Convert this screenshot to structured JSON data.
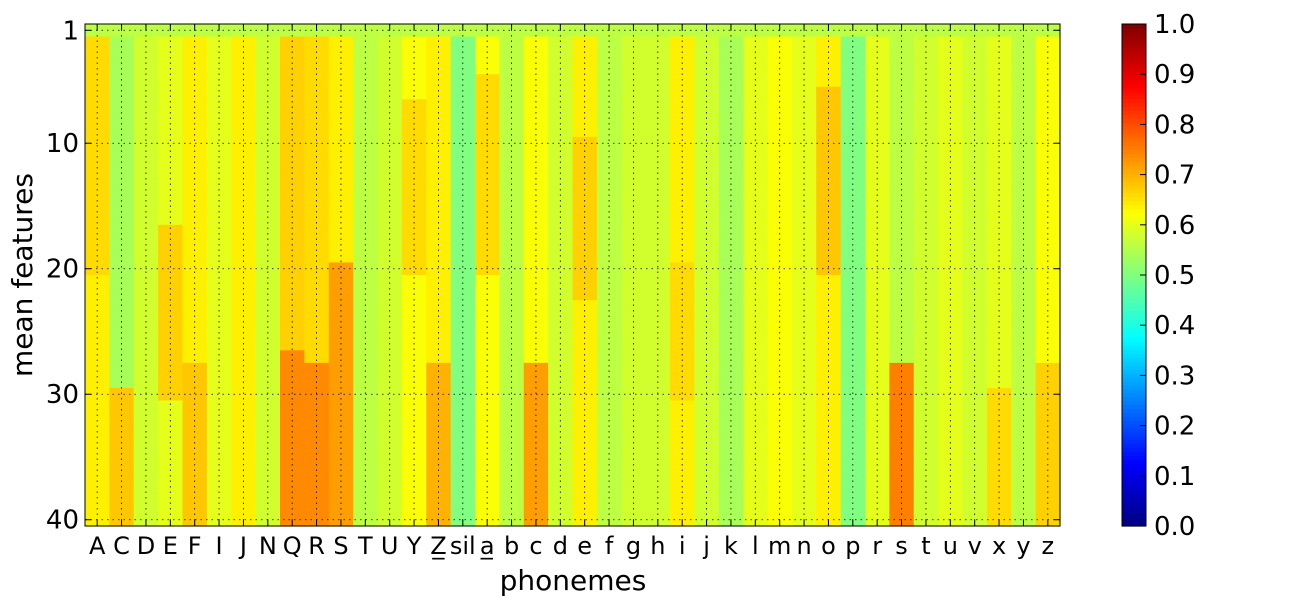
{
  "chart_data": {
    "type": "heatmap",
    "title": "",
    "xlabel": "phonemes",
    "ylabel": "mean features",
    "x_categories": [
      "A",
      "C",
      "D",
      "E",
      "F",
      "I",
      "J",
      "N",
      "Q",
      "R",
      "S",
      "T",
      "U",
      "Y",
      "Z_",
      "sil",
      "a_",
      "b",
      "c",
      "d",
      "e",
      "f",
      "g",
      "h",
      "i",
      "j",
      "k",
      "l",
      "m",
      "n",
      "o",
      "p",
      "r",
      "s",
      "t",
      "u",
      "v",
      "x",
      "y",
      "z"
    ],
    "x_tick_labels": [
      "A",
      "C",
      "D",
      "E",
      "F",
      "I",
      "J",
      "N",
      "Q",
      "R",
      "S",
      "T",
      "U",
      "Y",
      "Z̲",
      "sil",
      "a̲",
      "b",
      "c",
      "d",
      "e",
      "f",
      "g",
      "h",
      "i",
      "j",
      "k",
      "l",
      "m",
      "n",
      "o",
      "p",
      "r",
      "s",
      "t",
      "u",
      "v",
      "x",
      "y",
      "z"
    ],
    "y_range": [
      1,
      40
    ],
    "y_ticks": [
      1,
      10,
      20,
      30,
      40
    ],
    "grid": true,
    "colormap": "jet",
    "color_range": [
      0.0,
      1.0
    ],
    "colorbar_ticks": [
      "0.0",
      "0.1",
      "0.2",
      "0.3",
      "0.4",
      "0.5",
      "0.6",
      "0.7",
      "0.8",
      "0.9",
      "1.0"
    ],
    "column_base_values": [
      0.64,
      0.54,
      0.58,
      0.6,
      0.64,
      0.6,
      0.64,
      0.58,
      0.67,
      0.66,
      0.64,
      0.56,
      0.58,
      0.62,
      0.64,
      0.5,
      0.62,
      0.56,
      0.62,
      0.58,
      0.64,
      0.56,
      0.58,
      0.58,
      0.64,
      0.58,
      0.54,
      0.6,
      0.62,
      0.6,
      0.64,
      0.5,
      0.6,
      0.56,
      0.58,
      0.6,
      0.58,
      0.6,
      0.56,
      0.62
    ],
    "first_row_value": 0.56,
    "highlights": [
      {
        "column": "A",
        "rows": [
          2,
          20
        ],
        "value": 0.66
      },
      {
        "column": "C",
        "rows": [
          30,
          40
        ],
        "value": 0.68
      },
      {
        "column": "E",
        "rows": [
          17,
          30
        ],
        "value": 0.67
      },
      {
        "column": "F",
        "rows": [
          28,
          40
        ],
        "value": 0.68
      },
      {
        "column": "Q",
        "rows": [
          27,
          40
        ],
        "value": 0.74
      },
      {
        "column": "R",
        "rows": [
          28,
          40
        ],
        "value": 0.74
      },
      {
        "column": "S",
        "rows": [
          20,
          40
        ],
        "value": 0.72
      },
      {
        "column": "Y",
        "rows": [
          7,
          20
        ],
        "value": 0.66
      },
      {
        "column": "Z_",
        "rows": [
          28,
          40
        ],
        "value": 0.7
      },
      {
        "column": "a_",
        "rows": [
          5,
          20
        ],
        "value": 0.66
      },
      {
        "column": "c",
        "rows": [
          28,
          40
        ],
        "value": 0.72
      },
      {
        "column": "e",
        "rows": [
          10,
          22
        ],
        "value": 0.67
      },
      {
        "column": "i",
        "rows": [
          20,
          30
        ],
        "value": 0.66
      },
      {
        "column": "o",
        "rows": [
          6,
          20
        ],
        "value": 0.68
      },
      {
        "column": "s",
        "rows": [
          28,
          40
        ],
        "value": 0.75
      },
      {
        "column": "x",
        "rows": [
          30,
          40
        ],
        "value": 0.66
      },
      {
        "column": "z",
        "rows": [
          28,
          40
        ],
        "value": 0.67
      }
    ]
  }
}
